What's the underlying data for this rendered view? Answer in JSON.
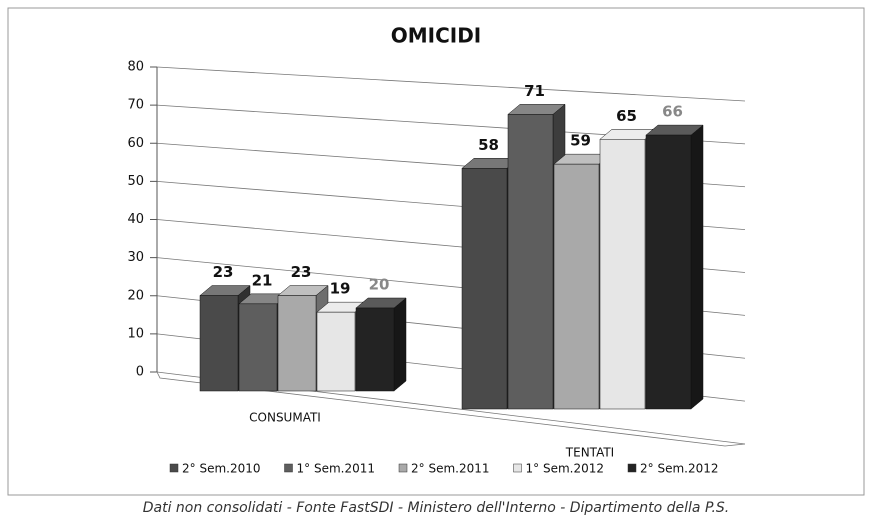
{
  "chart_data": {
    "type": "bar3d",
    "title": "OMICIDI",
    "categories": [
      "CONSUMATI",
      "TENTATI"
    ],
    "series": [
      {
        "name": "2° Sem.2010",
        "color": "#4a4a4a",
        "values": [
          23,
          58
        ]
      },
      {
        "name": "1° Sem.2011",
        "color": "#5e5e5e",
        "values": [
          21,
          71
        ]
      },
      {
        "name": "2° Sem.2011",
        "color": "#a9a9a9",
        "values": [
          23,
          59
        ]
      },
      {
        "name": "1° Sem.2012",
        "color": "#e6e6e6",
        "values": [
          19,
          65
        ]
      },
      {
        "name": "2° Sem.2012",
        "color": "#232323",
        "values": [
          20,
          66
        ]
      }
    ],
    "ylim": [
      0,
      80
    ],
    "yticks": [
      0,
      10,
      20,
      30,
      40,
      50,
      60,
      70,
      80
    ],
    "grid": true,
    "legend": "bottom",
    "footnote": "Dati non consolidati - Fonte FastSDI - Ministero dell'Interno - Dipartimento della P.S."
  }
}
